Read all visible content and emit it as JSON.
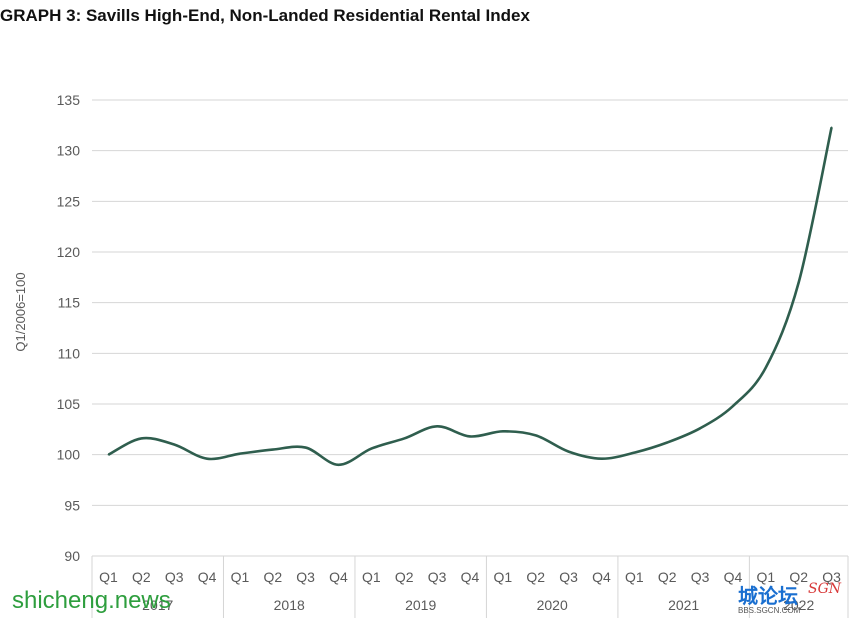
{
  "chart_data": {
    "type": "line",
    "title": "GRAPH 3: Savills High-End, Non-Landed Residential Rental Index",
    "ylabel": "Q1/2006=100",
    "xlabel": "",
    "ylim": [
      90,
      135
    ],
    "yticks": [
      90,
      95,
      100,
      105,
      110,
      115,
      120,
      125,
      130,
      135
    ],
    "grid": true,
    "line_color": "#2f5e4e",
    "categories": [
      "Q1",
      "Q2",
      "Q3",
      "Q4",
      "Q1",
      "Q2",
      "Q3",
      "Q4",
      "Q1",
      "Q2",
      "Q3",
      "Q4",
      "Q1",
      "Q2",
      "Q3",
      "Q4",
      "Q1",
      "Q2",
      "Q3",
      "Q4",
      "Q1",
      "Q2",
      "Q3"
    ],
    "year_groups": [
      {
        "label": "2017",
        "span": 4
      },
      {
        "label": "2018",
        "span": 4
      },
      {
        "label": "2019",
        "span": 4
      },
      {
        "label": "2020",
        "span": 4
      },
      {
        "label": "2021",
        "span": 4
      },
      {
        "label": "2022",
        "span": 3
      }
    ],
    "series": [
      {
        "values": [
          100.0,
          101.6,
          101.0,
          99.6,
          100.1,
          100.5,
          100.7,
          99.0,
          100.6,
          101.6,
          102.8,
          101.8,
          102.3,
          101.9,
          100.3,
          99.6,
          100.2,
          101.2,
          102.6,
          104.8,
          108.6,
          117.0,
          132.3
        ]
      }
    ]
  },
  "watermarks": {
    "left": "shicheng.news",
    "right_brand": "城论坛",
    "right_url": "BBS.SGCN.COM",
    "right_tag": "SGN"
  }
}
